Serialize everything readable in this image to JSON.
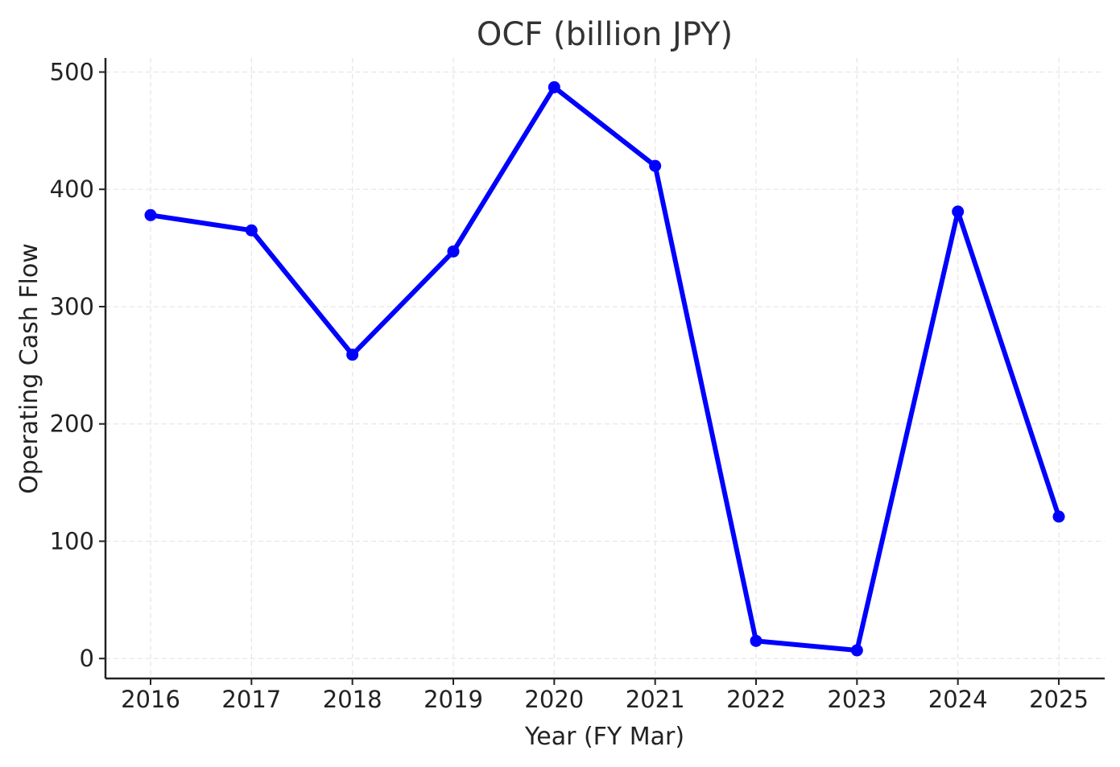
{
  "chart_data": {
    "type": "line",
    "title": "OCF (billion JPY)",
    "xlabel": "Year (FY Mar)",
    "ylabel": "Operating Cash Flow",
    "categories": [
      "2016",
      "2017",
      "2018",
      "2019",
      "2020",
      "2021",
      "2022",
      "2023",
      "2024",
      "2025"
    ],
    "series": [
      {
        "values": [
          378,
          365,
          259,
          347,
          487,
          420,
          15,
          7,
          381,
          121
        ]
      }
    ],
    "ylim": [
      -17,
      512
    ],
    "yticks": [
      "0",
      "100",
      "200",
      "300",
      "400",
      "500"
    ],
    "grid": true,
    "line_color": "#0000ff"
  }
}
